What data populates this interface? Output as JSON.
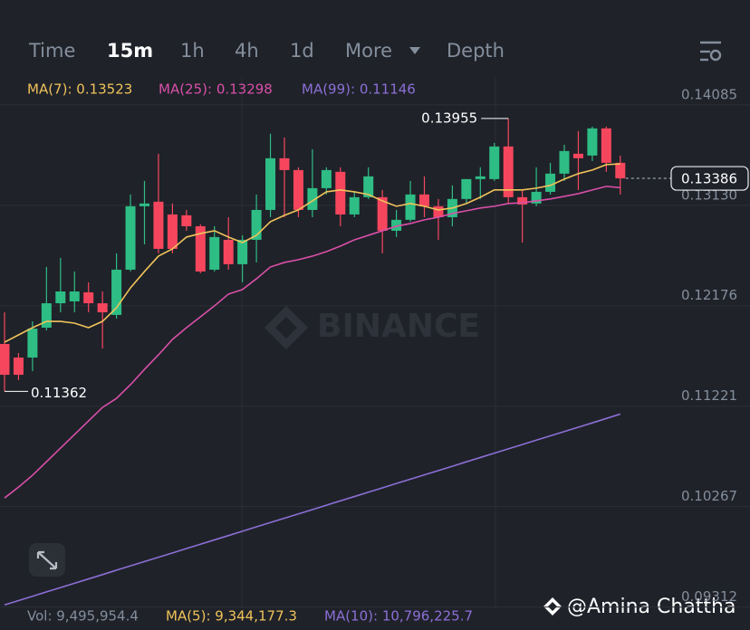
{
  "toolbar": {
    "tabs": [
      "Time",
      "15m",
      "1h",
      "4h",
      "1d",
      "More",
      "Depth"
    ],
    "active": 1
  },
  "chart_data": {
    "type": "candlestick",
    "up_color": "#2ebd85",
    "down_color": "#f6465d",
    "open": [
      0.11812,
      0.11683,
      0.11683,
      0.11967,
      0.12199,
      0.12217,
      0.12303,
      0.12199,
      0.12088,
      0.12518,
      0.13121,
      0.13164,
      0.13043,
      0.13035,
      0.12931,
      0.12518,
      0.12802,
      0.1257,
      0.12802,
      0.13086,
      0.13577,
      0.13465,
      0.13086,
      0.13293,
      0.13448,
      0.13043,
      0.13207,
      0.13207,
      0.12888,
      0.12992,
      0.13233,
      0.13121,
      0.13017,
      0.1319,
      0.13379,
      0.13379,
      0.13689,
      0.13207,
      0.13147,
      0.13258,
      0.13431,
      0.1362,
      0.13603,
      0.13861,
      0.13534
    ],
    "high": [
      0.12113,
      0.11726,
      0.12027,
      0.12544,
      0.1263,
      0.12501,
      0.12398,
      0.12311,
      0.12673,
      0.13233,
      0.13362,
      0.1362,
      0.13147,
      0.13086,
      0.12949,
      0.12931,
      0.13017,
      0.12845,
      0.13233,
      0.1381,
      0.13775,
      0.13491,
      0.13663,
      0.13491,
      0.13491,
      0.13258,
      0.13491,
      0.13276,
      0.13086,
      0.13362,
      0.13405,
      0.1319,
      0.13319,
      0.13379,
      0.13491,
      0.13723,
      0.13955,
      0.13276,
      0.13491,
      0.13534,
      0.13706,
      0.13835,
      0.13878,
      0.13878,
      0.13603
    ],
    "low": [
      0.11362,
      0.11468,
      0.11554,
      0.11941,
      0.12113,
      0.12113,
      0.12113,
      0.11769,
      0.12053,
      0.12501,
      0.12759,
      0.12673,
      0.12673,
      0.12888,
      0.12484,
      0.12501,
      0.12518,
      0.12398,
      0.12587,
      0.13017,
      0.13017,
      0.13017,
      0.13017,
      0.13233,
      0.12931,
      0.13017,
      0.1319,
      0.12673,
      0.12828,
      0.12974,
      0.13017,
      0.12802,
      0.12931,
      0.13147,
      0.1319,
      0.13362,
      0.13147,
      0.12776,
      0.13121,
      0.13233,
      0.13362,
      0.13276,
      0.13551,
      0.13448,
      0.13233
    ],
    "close": [
      0.11519,
      0.11519,
      0.11958,
      0.12199,
      0.12311,
      0.12311,
      0.12199,
      0.12113,
      0.12518,
      0.13121,
      0.13147,
      0.12716,
      0.12716,
      0.12931,
      0.12501,
      0.12828,
      0.1257,
      0.12802,
      0.13086,
      0.13577,
      0.13465,
      0.13086,
      0.13293,
      0.13465,
      0.13043,
      0.13207,
      0.13405,
      0.12888,
      0.12992,
      0.13233,
      0.13121,
      0.13017,
      0.1319,
      0.13379,
      0.13405,
      0.13689,
      0.13207,
      0.13138,
      0.13258,
      0.13431,
      0.13646,
      0.13577,
      0.13861,
      0.13534,
      0.13386
    ],
    "series": [
      {
        "name": "MA(7): 0.13523",
        "color": "#f0c35a",
        "values": [
          0.11829,
          0.11898,
          0.11967,
          0.12027,
          0.12027,
          0.1201,
          0.11967,
          0.12027,
          0.12156,
          0.12346,
          0.12501,
          0.12647,
          0.12716,
          0.12828,
          0.12862,
          0.12888,
          0.12828,
          0.12776,
          0.12845,
          0.12974,
          0.13035,
          0.13086,
          0.13172,
          0.13258,
          0.13276,
          0.13258,
          0.13233,
          0.13172,
          0.13121,
          0.13147,
          0.13121,
          0.13086,
          0.13104,
          0.13147,
          0.13207,
          0.13276,
          0.13276,
          0.13276,
          0.13293,
          0.13319,
          0.13379,
          0.13431,
          0.13465,
          0.13517,
          0.13523
        ]
      },
      {
        "name": "MA(25): 0.13298",
        "color": "#d94fa8",
        "values": [
          0.10348,
          0.10452,
          0.10564,
          0.10693,
          0.10822,
          0.10951,
          0.1108,
          0.11209,
          0.11295,
          0.11425,
          0.11571,
          0.11709,
          0.11855,
          0.11967,
          0.1207,
          0.12174,
          0.12286,
          0.12329,
          0.12432,
          0.12544,
          0.12587,
          0.12613,
          0.12647,
          0.1269,
          0.12742,
          0.12802,
          0.12845,
          0.12888,
          0.12931,
          0.12957,
          0.12992,
          0.13017,
          0.13052,
          0.13078,
          0.13104,
          0.13121,
          0.13147,
          0.13155,
          0.13172,
          0.1319,
          0.13215,
          0.13241,
          0.13276,
          0.1331,
          0.13298
        ]
      },
      {
        "name": "MA(99): 0.11146",
        "color": "#8c6fd6",
        "values": [
          0.09332,
          0.09373,
          0.09414,
          0.09456,
          0.09497,
          0.09538,
          0.09579,
          0.0962,
          0.09662,
          0.09703,
          0.09744,
          0.09785,
          0.09826,
          0.09868,
          0.09909,
          0.0995,
          0.09991,
          0.10032,
          0.10074,
          0.10115,
          0.10156,
          0.10197,
          0.10238,
          0.1028,
          0.10321,
          0.10362,
          0.10403,
          0.10444,
          0.10486,
          0.10527,
          0.10568,
          0.10609,
          0.1065,
          0.10692,
          0.10733,
          0.10774,
          0.10815,
          0.10856,
          0.10898,
          0.10939,
          0.1098,
          0.11021,
          0.11062,
          0.11104,
          0.11146
        ]
      }
    ],
    "ylim": [
      0.093,
      0.1435
    ],
    "yticks": [
      0.14085,
      {
        "value": 0.1313,
        "label": "0.13130"
      },
      0.12176,
      0.11221,
      0.10267,
      0.09312
    ],
    "grid": true
  },
  "volume": {
    "vol": "Vol: 9,495,954.4",
    "ma5": "MA(5): 9,344,177.3",
    "ma10": "MA(10): 10,796,225.7"
  },
  "watermark": "BINANCE",
  "credit": "@Amina Chattha"
}
